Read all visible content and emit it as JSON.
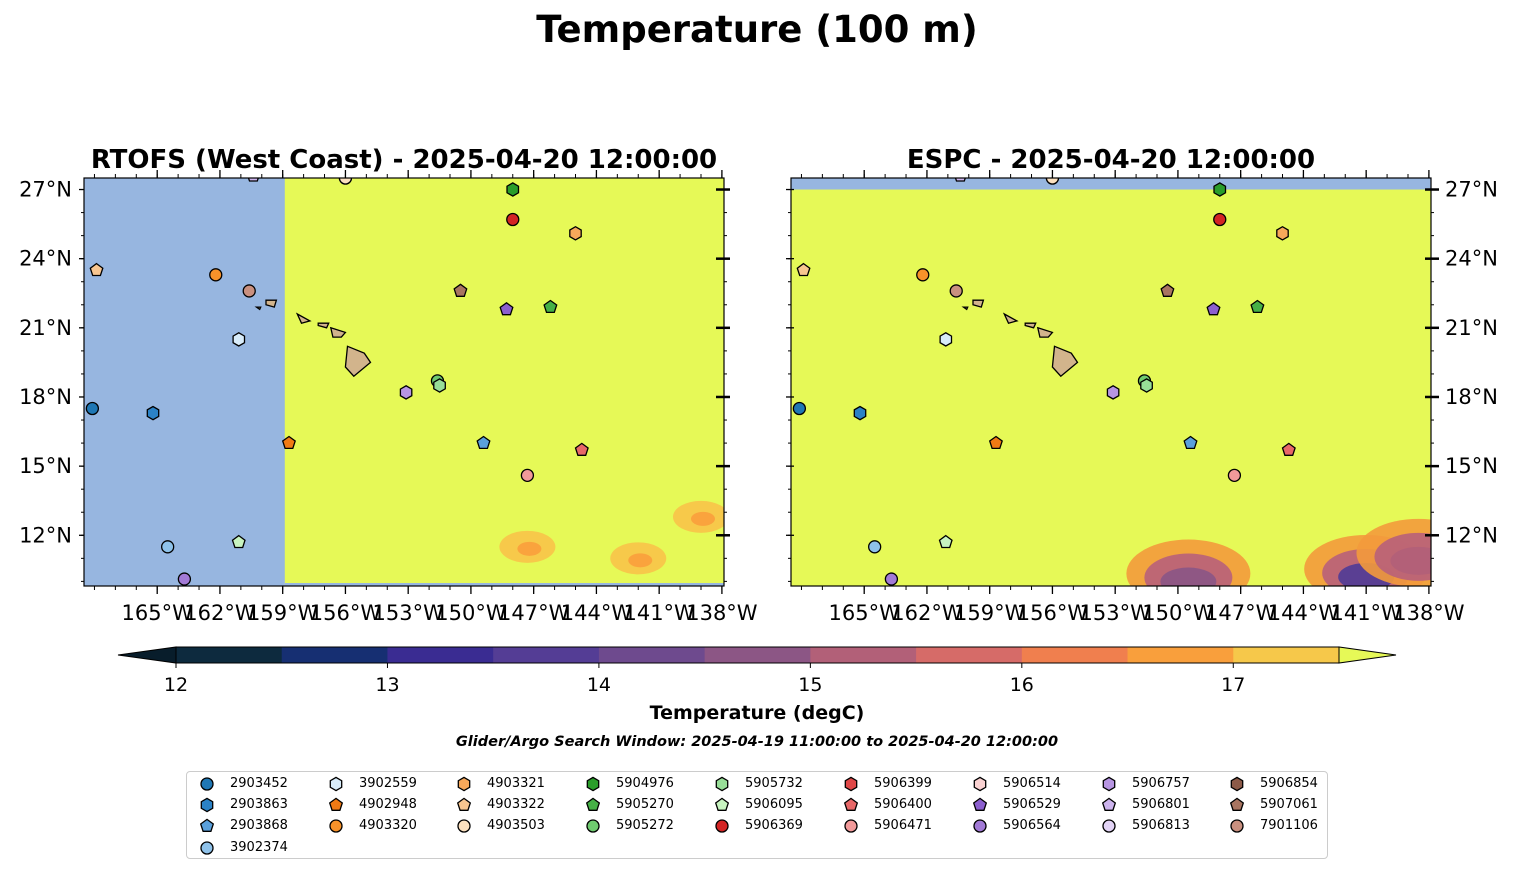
{
  "figure": {
    "suptitle": "Temperature (100 m)",
    "colorbar_label": "Temperature (degC)",
    "search_window": "Glider/Argo Search Window: 2025-04-19 11:00:00 to 2025-04-20 12:00:00"
  },
  "colors": {
    "land": "#d2b48c",
    "no_data_ocean": "#97b6e0",
    "warm_max": "#e6f957"
  },
  "chart_data": [
    {
      "type": "heatmap",
      "title": "RTOFS (West Coast) - 2025-04-20 12:00:00",
      "xlim": [
        -168.5,
        -137.9
      ],
      "ylim": [
        9.8,
        27.5
      ],
      "xticks": [
        "165°W",
        "162°W",
        "159°W",
        "156°W",
        "153°W",
        "150°W",
        "147°W",
        "144°W",
        "141°W",
        "138°W"
      ],
      "yticks": [
        "12°N",
        "15°N",
        "18°N",
        "21°N",
        "24°N",
        "27°N"
      ],
      "no_data_west_of_lon": -158.9,
      "warm_patches": [
        {
          "lon": -139.0,
          "lat": 12.8,
          "value": 16.5
        },
        {
          "lon": -142.0,
          "lat": 11.0,
          "value": 16.6
        },
        {
          "lon": -147.3,
          "lat": 11.5,
          "value": 16.9
        }
      ]
    },
    {
      "type": "heatmap",
      "title": "ESPC - 2025-04-20 12:00:00",
      "xlim": [
        -168.5,
        -137.9
      ],
      "ylim": [
        9.8,
        27.5
      ],
      "xticks": [
        "165°W",
        "162°W",
        "159°W",
        "156°W",
        "153°W",
        "150°W",
        "147°W",
        "144°W",
        "141°W",
        "138°W"
      ],
      "yticks": [
        "12°N",
        "15°N",
        "18°N",
        "21°N",
        "24°N",
        "27°N"
      ],
      "no_data_north_of_lat": 27.0,
      "cool_patches": [
        {
          "lon": -141.0,
          "lat": 10.8,
          "value": 13.8
        },
        {
          "lon": -149.5,
          "lat": 10.6,
          "value": 14.5
        },
        {
          "lon": -138.5,
          "lat": 11.5,
          "value": 15.2
        }
      ]
    }
  ],
  "colorbar": {
    "ticks": [
      "12",
      "13",
      "14",
      "15",
      "16",
      "17"
    ],
    "min": 11.75,
    "max": 17.75,
    "colors": [
      "#0d2a3e",
      "#162f72",
      "#3a2c92",
      "#543d95",
      "#6e4a8e",
      "#8c5685",
      "#b26078",
      "#d66b68",
      "#f07f4e",
      "#f99f3c",
      "#f6c84a"
    ]
  },
  "floats": [
    {
      "id": "2903452",
      "marker": "circle",
      "color": "#1f77b4",
      "lon": -168.1,
      "lat": 17.5
    },
    {
      "id": "2903863",
      "marker": "hexagon",
      "color": "#2b82c6",
      "lon": -165.2,
      "lat": 17.3
    },
    {
      "id": "2903868",
      "marker": "pentagon",
      "color": "#5aa0dc",
      "lon": -149.4,
      "lat": 16.0
    },
    {
      "id": "3902374",
      "marker": "circle",
      "color": "#8fc2ea",
      "lon": -164.5,
      "lat": 11.5
    },
    {
      "id": "3902559",
      "marker": "hexagon",
      "color": "#d8ecfa",
      "lon": -161.1,
      "lat": 20.5
    },
    {
      "id": "4902948",
      "marker": "pentagon",
      "color": "#f07a14",
      "lon": -158.7,
      "lat": 16.0
    },
    {
      "id": "4903320",
      "marker": "circle",
      "color": "#f7922a",
      "lon": -162.2,
      "lat": 23.3
    },
    {
      "id": "4903321",
      "marker": "hexagon",
      "color": "#f7a85a",
      "lon": -145.0,
      "lat": 25.1
    },
    {
      "id": "4903322",
      "marker": "pentagon",
      "color": "#f8c690",
      "lon": -167.9,
      "lat": 23.5
    },
    {
      "id": "4903503",
      "marker": "circle",
      "color": "#fbe0bf",
      "lon": -156.0,
      "lat": 27.5
    },
    {
      "id": "4903503",
      "marker": "circle",
      "color": "#fbe0bf",
      "lon": -156.0,
      "lat": 27.5
    },
    {
      "id": "5904976",
      "marker": "hexagon",
      "color": "#2a9d2a",
      "lon": -148.0,
      "lat": 27.0
    },
    {
      "id": "5905270",
      "marker": "pentagon",
      "color": "#46b046",
      "lon": -146.2,
      "lat": 21.9
    },
    {
      "id": "5905272",
      "marker": "circle",
      "color": "#6fca6f",
      "lon": -151.6,
      "lat": 18.7
    },
    {
      "id": "5905732",
      "marker": "hexagon",
      "color": "#98de98",
      "lon": -151.5,
      "lat": 18.5
    },
    {
      "id": "5906095",
      "marker": "pentagon",
      "color": "#c8f4c0",
      "lon": -161.1,
      "lat": 11.7
    },
    {
      "id": "5906369",
      "marker": "circle",
      "color": "#d32424",
      "lon": -148.0,
      "lat": 25.7
    },
    {
      "id": "5906399",
      "marker": "hexagon",
      "color": "#e04848",
      "lon": 0,
      "lat": 0,
      "hidden": true
    },
    {
      "id": "5906400",
      "marker": "pentagon",
      "color": "#e86868",
      "lon": -144.7,
      "lat": 15.7
    },
    {
      "id": "5906471",
      "marker": "circle",
      "color": "#f29a9a",
      "lon": -147.3,
      "lat": 14.6
    },
    {
      "id": "5906514",
      "marker": "hexagon",
      "color": "#fad2d2",
      "lon": 0,
      "lat": 0,
      "hidden": true
    },
    {
      "id": "5906529",
      "marker": "pentagon",
      "color": "#8c5fcf",
      "lon": -148.3,
      "lat": 21.8
    },
    {
      "id": "5906564",
      "marker": "circle",
      "color": "#a27ad6",
      "lon": -163.7,
      "lat": 10.1
    },
    {
      "id": "5906757",
      "marker": "hexagon",
      "color": "#b795e2",
      "lon": -153.1,
      "lat": 18.2
    },
    {
      "id": "5906801",
      "marker": "pentagon",
      "color": "#cdb4ee",
      "lon": -160.4,
      "lat": 27.6
    },
    {
      "id": "5906813",
      "marker": "circle",
      "color": "#e3d4f6",
      "lon": 0,
      "lat": 0,
      "hidden": true
    },
    {
      "id": "5906854",
      "marker": "hexagon",
      "color": "#8c5a48",
      "lon": 0,
      "lat": 0,
      "hidden": true
    },
    {
      "id": "5907061",
      "marker": "pentagon",
      "color": "#a97561",
      "lon": -150.5,
      "lat": 22.6
    },
    {
      "id": "7901106",
      "marker": "circle",
      "color": "#c9907f",
      "lon": -160.6,
      "lat": 22.6
    }
  ],
  "legend": [
    {
      "id": "2903452",
      "marker": "circle",
      "color": "#1f77b4"
    },
    {
      "id": "2903863",
      "marker": "hexagon",
      "color": "#2b82c6"
    },
    {
      "id": "2903868",
      "marker": "pentagon",
      "color": "#5aa0dc"
    },
    {
      "id": "3902374",
      "marker": "circle",
      "color": "#8fc2ea"
    },
    {
      "id": "3902559",
      "marker": "hexagon",
      "color": "#d8ecfa"
    },
    {
      "id": "4902948",
      "marker": "pentagon",
      "color": "#f07a14"
    },
    {
      "id": "4903320",
      "marker": "circle",
      "color": "#f7922a"
    },
    {
      "id": "4903321",
      "marker": "hexagon",
      "color": "#f7a85a"
    },
    {
      "id": "4903322",
      "marker": "pentagon",
      "color": "#f8c690"
    },
    {
      "id": "4903503",
      "marker": "circle",
      "color": "#fbe0bf"
    },
    {
      "id": "5904976",
      "marker": "hexagon",
      "color": "#2a9d2a"
    },
    {
      "id": "5905270",
      "marker": "pentagon",
      "color": "#46b046"
    },
    {
      "id": "5905272",
      "marker": "circle",
      "color": "#6fca6f"
    },
    {
      "id": "5905732",
      "marker": "hexagon",
      "color": "#98de98"
    },
    {
      "id": "5906095",
      "marker": "pentagon",
      "color": "#c8f4c0"
    },
    {
      "id": "5906369",
      "marker": "circle",
      "color": "#d32424"
    },
    {
      "id": "5906399",
      "marker": "hexagon",
      "color": "#e04848"
    },
    {
      "id": "5906400",
      "marker": "pentagon",
      "color": "#e86868"
    },
    {
      "id": "5906471",
      "marker": "circle",
      "color": "#f29a9a"
    },
    {
      "id": "5906514",
      "marker": "hexagon",
      "color": "#fad2d2"
    },
    {
      "id": "5906529",
      "marker": "pentagon",
      "color": "#8c5fcf"
    },
    {
      "id": "5906564",
      "marker": "circle",
      "color": "#a27ad6"
    },
    {
      "id": "5906757",
      "marker": "hexagon",
      "color": "#b795e2"
    },
    {
      "id": "5906801",
      "marker": "pentagon",
      "color": "#cdb4ee"
    },
    {
      "id": "5906813",
      "marker": "circle",
      "color": "#e3d4f6"
    },
    {
      "id": "5906854",
      "marker": "hexagon",
      "color": "#8c5a48"
    },
    {
      "id": "5907061",
      "marker": "pentagon",
      "color": "#a97561"
    },
    {
      "id": "7901106",
      "marker": "circle",
      "color": "#c9907f"
    }
  ]
}
